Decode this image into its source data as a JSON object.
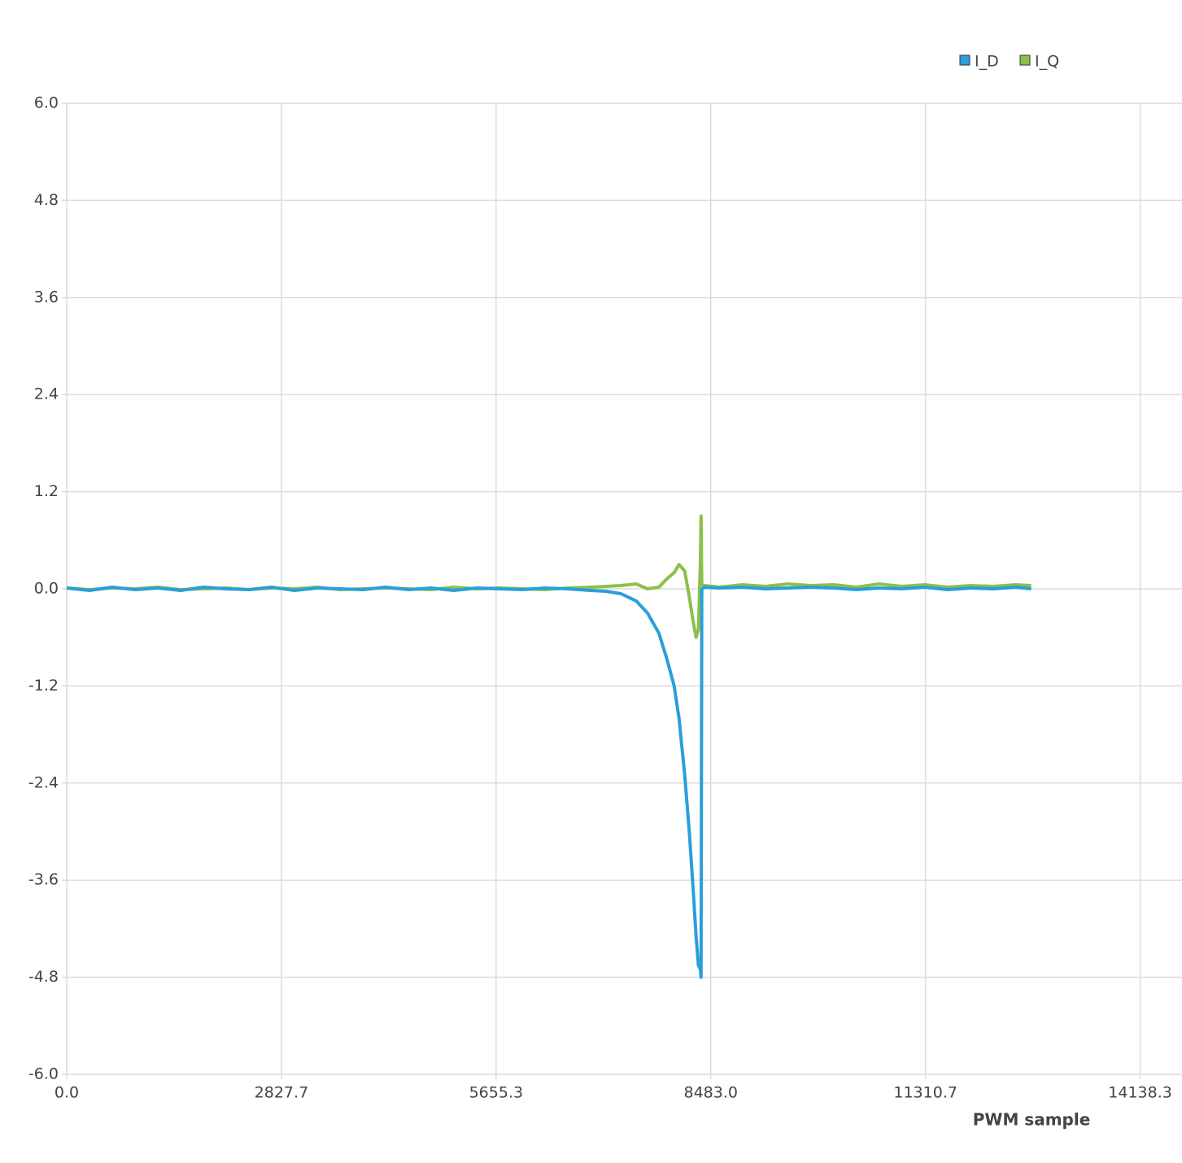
{
  "chart_data": {
    "type": "line",
    "x_label": "PWM sample",
    "x": [
      0,
      300,
      600,
      900,
      1200,
      1500,
      1800,
      2100,
      2400,
      2700,
      3000,
      3300,
      3600,
      3900,
      4200,
      4500,
      4800,
      5100,
      5400,
      5700,
      6000,
      6300,
      6600,
      6900,
      7100,
      7300,
      7500,
      7650,
      7800,
      7900,
      8000,
      8065,
      8140,
      8200,
      8250,
      8290,
      8320,
      8345,
      8355,
      8365,
      8400,
      8600,
      8900,
      9200,
      9500,
      9800,
      10100,
      10400,
      10700,
      11000,
      11300,
      11600,
      11900,
      12200,
      12500,
      12703
    ],
    "series": [
      {
        "name": "I_D",
        "color": "#2a9fd8",
        "values": [
          0.01,
          -0.02,
          0.02,
          -0.01,
          0.01,
          -0.02,
          0.02,
          0,
          -0.01,
          0.02,
          -0.02,
          0.01,
          0,
          -0.01,
          0.02,
          -0.01,
          0.01,
          -0.02,
          0.01,
          0,
          -0.01,
          0.01,
          0,
          -0.02,
          -0.03,
          -0.06,
          -0.15,
          -0.3,
          -0.55,
          -0.85,
          -1.2,
          -1.6,
          -2.3,
          -3.0,
          -3.7,
          -4.3,
          -4.65,
          -4.7,
          -4.8,
          0.0,
          0.02,
          0.01,
          0.02,
          0,
          0.01,
          0.02,
          0.01,
          -0.01,
          0.01,
          0,
          0.02,
          -0.01,
          0.01,
          0,
          0.02,
          0.0
        ]
      },
      {
        "name": "I_Q",
        "color": "#8dc04a",
        "values": [
          0.01,
          -0.01,
          0.01,
          0,
          0.02,
          -0.01,
          0,
          0.01,
          -0.01,
          0.01,
          0,
          0.02,
          -0.01,
          0,
          0.01,
          0,
          -0.01,
          0.02,
          0,
          0.01,
          0,
          -0.01,
          0.01,
          0.02,
          0.03,
          0.04,
          0.06,
          0.0,
          0.02,
          0.12,
          0.2,
          0.3,
          0.22,
          -0.1,
          -0.4,
          -0.6,
          -0.5,
          0.3,
          0.9,
          0.05,
          0.04,
          0.02,
          0.05,
          0.03,
          0.06,
          0.04,
          0.05,
          0.02,
          0.06,
          0.03,
          0.05,
          0.02,
          0.04,
          0.03,
          0.05,
          0.04
        ]
      }
    ],
    "xlim": [
      0,
      14700
    ],
    "ylim": [
      -6,
      6
    ],
    "xticks": [
      {
        "value": 0,
        "label": "0.0"
      },
      2827.7,
      5655.3,
      {
        "value": 8483,
        "label": "8483.0"
      },
      11310.7,
      14138.3
    ],
    "yticks": [
      {
        "value": -6,
        "label": "-6.0"
      },
      -4.8,
      -3.6,
      -2.4,
      -1.2,
      {
        "value": 0,
        "label": "0.0"
      },
      1.2,
      2.4,
      3.6,
      4.8,
      {
        "value": 6,
        "label": "6.0"
      }
    ],
    "grid": true,
    "legend": "top-right"
  }
}
